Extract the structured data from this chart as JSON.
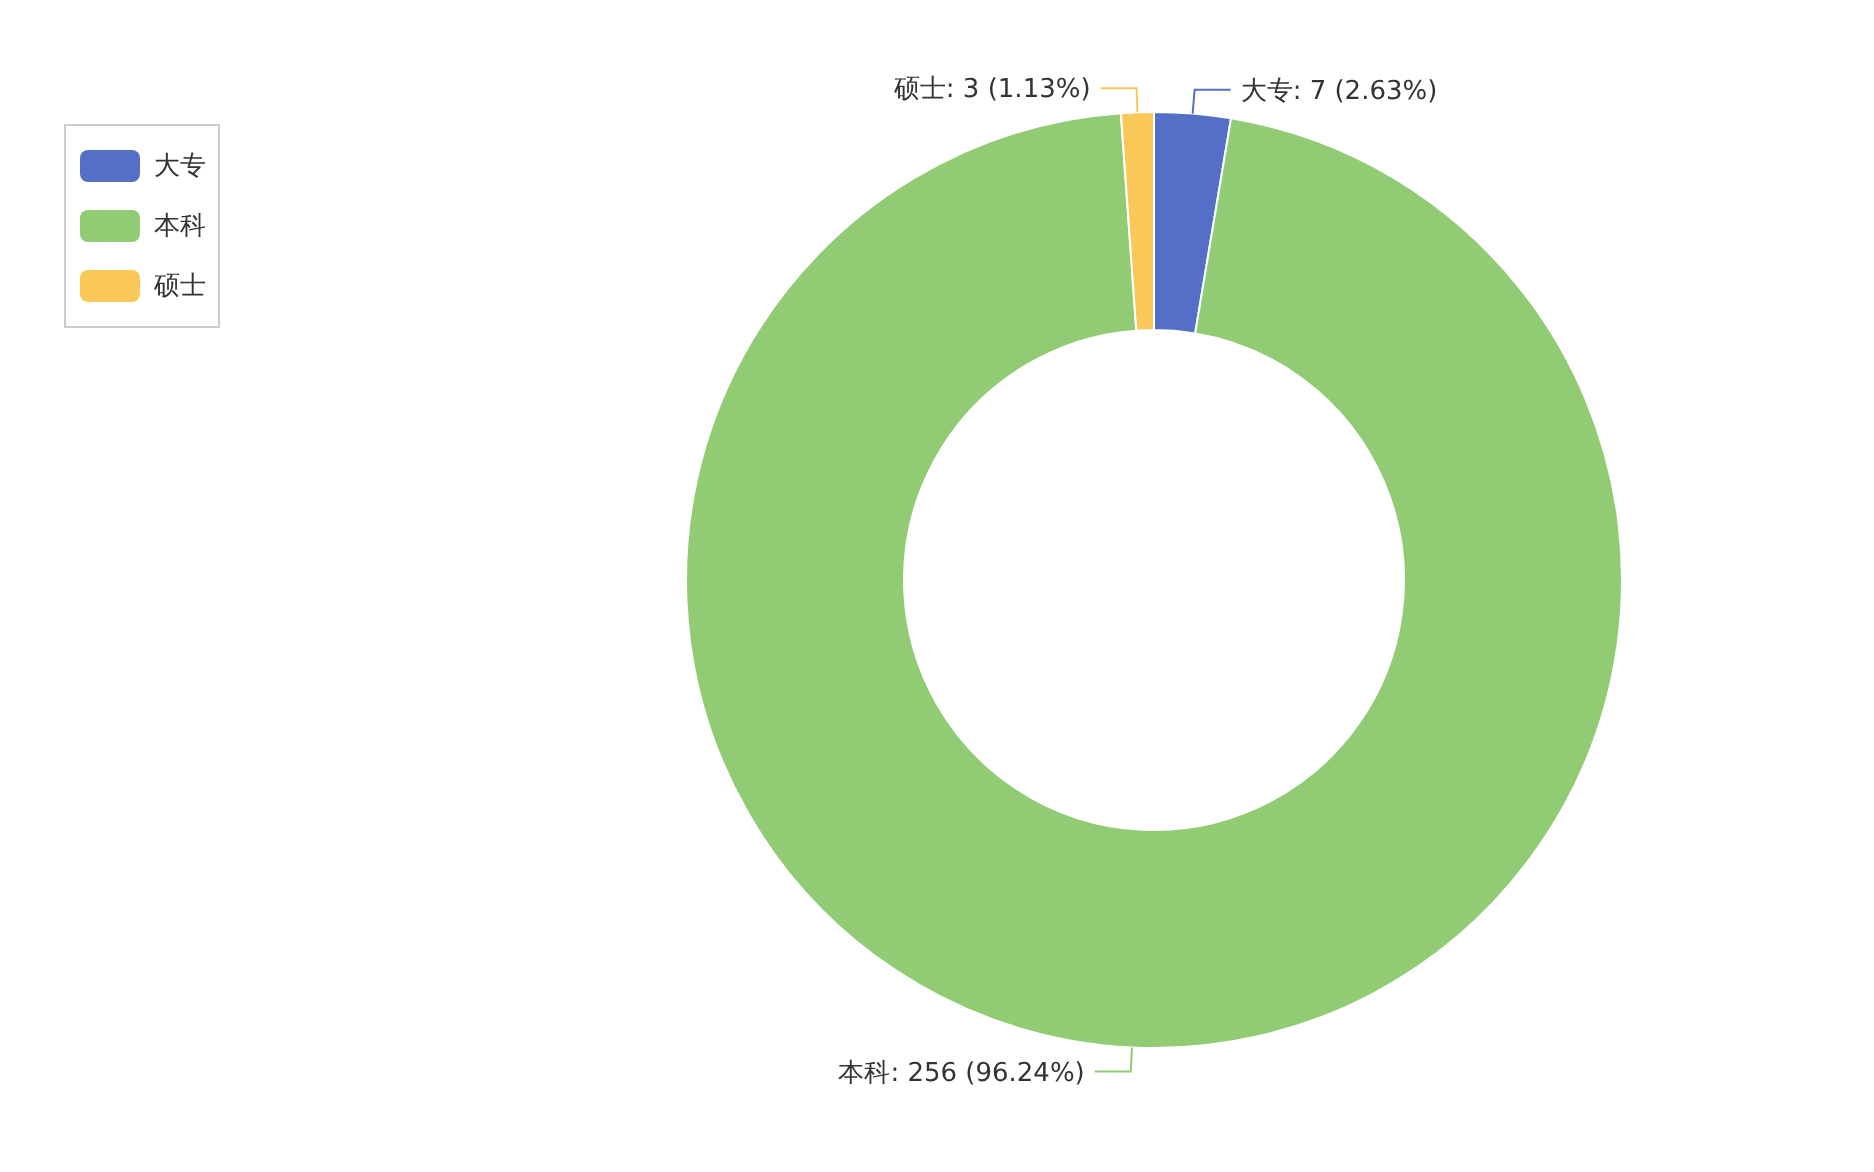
{
  "chart_data": {
    "type": "donut",
    "categories": [
      "大专",
      "本科",
      "硕士"
    ],
    "values": [
      7,
      256,
      3
    ],
    "colors": [
      "#5470c6",
      "#91cc75",
      "#fac858"
    ],
    "value_labels": [
      "大专: 7 (2.63%)",
      "本科: 256 (96.24%)",
      "硕士: 3 (1.13%)"
    ],
    "legend": "top left"
  }
}
